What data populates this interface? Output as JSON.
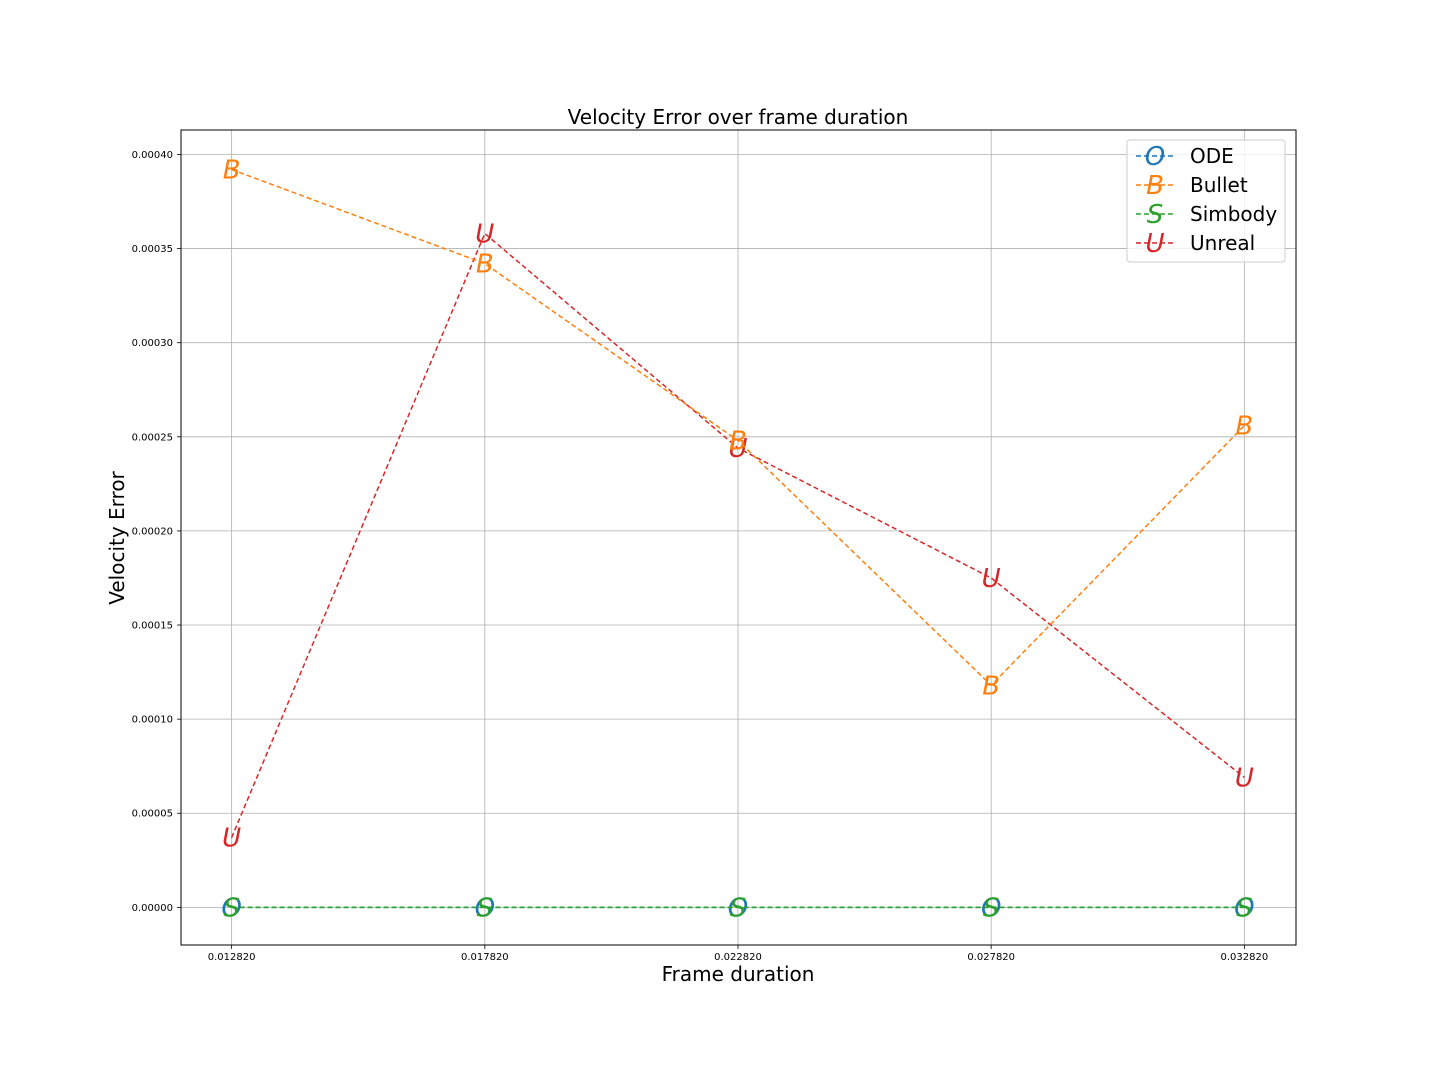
{
  "chart_data": {
    "type": "line",
    "title": "Velocity Error over frame duration",
    "xlabel": "Frame duration",
    "ylabel": "Velocity Error",
    "x": [
      0.01282,
      0.01782,
      0.02282,
      0.02782,
      0.03282
    ],
    "x_tick_labels": [
      "0.012820",
      "0.017820",
      "0.022820",
      "0.027820",
      "0.032820"
    ],
    "y_ticks": [
      0.0,
      5e-05,
      0.0001,
      0.00015,
      0.0002,
      0.00025,
      0.0003,
      0.00035,
      0.0004
    ],
    "y_tick_labels": [
      "0.00000",
      "0.00005",
      "0.00010",
      "0.00015",
      "0.00020",
      "0.00025",
      "0.00030",
      "0.00035",
      "0.00040"
    ],
    "xlim": [
      0.01182,
      0.03384
    ],
    "ylim": [
      -2e-05,
      0.000413
    ],
    "grid": true,
    "legend_position": "top-right",
    "line_style": "dashed",
    "series": [
      {
        "name": "ODE",
        "marker": "O",
        "color": "#1f77b4",
        "values": [
          0.0,
          0.0,
          0.0,
          0.0,
          0.0
        ]
      },
      {
        "name": "Bullet",
        "marker": "B",
        "color": "#ff7f0e",
        "values": [
          0.000392,
          0.000342,
          0.000248,
          0.000118,
          0.000256
        ]
      },
      {
        "name": "Simbody",
        "marker": "S",
        "color": "#2ca02c",
        "values": [
          0.0,
          0.0,
          0.0,
          0.0,
          0.0
        ]
      },
      {
        "name": "Unreal",
        "marker": "U",
        "color": "#d62728",
        "values": [
          3.7e-05,
          0.000358,
          0.000244,
          0.000175,
          6.9e-05
        ]
      }
    ]
  }
}
